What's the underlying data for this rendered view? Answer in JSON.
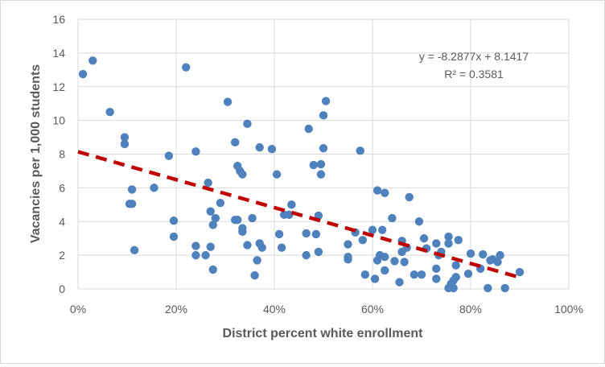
{
  "chart_data": {
    "type": "scatter",
    "xlabel": "District percent white enrollment",
    "ylabel": "Vacancies per 1,000 students",
    "xlim": [
      0,
      1
    ],
    "ylim": [
      0,
      16
    ],
    "x_ticks": [
      "0%",
      "20%",
      "40%",
      "60%",
      "80%",
      "100%"
    ],
    "x_tick_values": [
      0,
      0.2,
      0.4,
      0.6,
      0.8,
      1.0
    ],
    "y_ticks": [
      "0",
      "2",
      "4",
      "6",
      "8",
      "10",
      "12",
      "14",
      "16"
    ],
    "y_tick_values": [
      0,
      2,
      4,
      6,
      8,
      10,
      12,
      14,
      16
    ],
    "grid": true,
    "point_color": "#4f81bd",
    "trend_color": "#c00000",
    "trendline": {
      "slope": -8.2877,
      "intercept": 8.1417,
      "x_range": [
        0.0,
        0.9
      ],
      "equation": "y = -8.2877x + 8.1417",
      "r_squared": "R² = 0.3581"
    },
    "points": [
      [
        0.01,
        12.75
      ],
      [
        0.03,
        13.55
      ],
      [
        0.065,
        10.5
      ],
      [
        0.095,
        9.0
      ],
      [
        0.095,
        8.6
      ],
      [
        0.105,
        5.05
      ],
      [
        0.11,
        5.05
      ],
      [
        0.11,
        5.9
      ],
      [
        0.115,
        2.3
      ],
      [
        0.155,
        6.0
      ],
      [
        0.185,
        7.9
      ],
      [
        0.195,
        4.05
      ],
      [
        0.195,
        3.1
      ],
      [
        0.22,
        13.15
      ],
      [
        0.24,
        8.15
      ],
      [
        0.24,
        2.55
      ],
      [
        0.24,
        2.0
      ],
      [
        0.26,
        2.0
      ],
      [
        0.265,
        6.3
      ],
      [
        0.27,
        4.6
      ],
      [
        0.27,
        2.5
      ],
      [
        0.275,
        3.8
      ],
      [
        0.275,
        1.15
      ],
      [
        0.28,
        4.2
      ],
      [
        0.29,
        5.1
      ],
      [
        0.305,
        11.1
      ],
      [
        0.32,
        8.7
      ],
      [
        0.32,
        4.1
      ],
      [
        0.325,
        4.1
      ],
      [
        0.325,
        7.3
      ],
      [
        0.33,
        7.0
      ],
      [
        0.335,
        6.8
      ],
      [
        0.335,
        3.6
      ],
      [
        0.335,
        3.4
      ],
      [
        0.345,
        9.8
      ],
      [
        0.345,
        2.6
      ],
      [
        0.355,
        4.2
      ],
      [
        0.36,
        0.8
      ],
      [
        0.365,
        1.7
      ],
      [
        0.37,
        8.4
      ],
      [
        0.37,
        2.7
      ],
      [
        0.375,
        2.45
      ],
      [
        0.395,
        8.3
      ],
      [
        0.405,
        6.8
      ],
      [
        0.41,
        3.25
      ],
      [
        0.415,
        2.45
      ],
      [
        0.42,
        4.4
      ],
      [
        0.43,
        4.4
      ],
      [
        0.435,
        5.0
      ],
      [
        0.465,
        2.0
      ],
      [
        0.465,
        3.3
      ],
      [
        0.47,
        9.5
      ],
      [
        0.48,
        7.35
      ],
      [
        0.485,
        3.25
      ],
      [
        0.49,
        2.2
      ],
      [
        0.49,
        4.35
      ],
      [
        0.495,
        7.4
      ],
      [
        0.495,
        6.8
      ],
      [
        0.5,
        10.3
      ],
      [
        0.5,
        8.35
      ],
      [
        0.505,
        11.15
      ],
      [
        0.55,
        2.65
      ],
      [
        0.55,
        1.9
      ],
      [
        0.55,
        1.75
      ],
      [
        0.565,
        3.35
      ],
      [
        0.575,
        8.2
      ],
      [
        0.58,
        2.9
      ],
      [
        0.585,
        0.85
      ],
      [
        0.6,
        3.5
      ],
      [
        0.605,
        0.6
      ],
      [
        0.61,
        5.85
      ],
      [
        0.61,
        1.7
      ],
      [
        0.615,
        2.0
      ],
      [
        0.62,
        3.5
      ],
      [
        0.625,
        1.9
      ],
      [
        0.625,
        5.7
      ],
      [
        0.625,
        1.1
      ],
      [
        0.64,
        4.2
      ],
      [
        0.645,
        1.65
      ],
      [
        0.655,
        0.4
      ],
      [
        0.66,
        2.85
      ],
      [
        0.66,
        2.2
      ],
      [
        0.665,
        1.6
      ],
      [
        0.67,
        2.45
      ],
      [
        0.675,
        5.45
      ],
      [
        0.685,
        0.85
      ],
      [
        0.695,
        4.0
      ],
      [
        0.7,
        0.85
      ],
      [
        0.705,
        3.0
      ],
      [
        0.71,
        2.4
      ],
      [
        0.73,
        0.6
      ],
      [
        0.73,
        1.2
      ],
      [
        0.73,
        2.7
      ],
      [
        0.735,
        2.0
      ],
      [
        0.74,
        2.2
      ],
      [
        0.755,
        3.1
      ],
      [
        0.755,
        2.7
      ],
      [
        0.755,
        0.05
      ],
      [
        0.76,
        0.3
      ],
      [
        0.765,
        0.05
      ],
      [
        0.765,
        0.5
      ],
      [
        0.77,
        1.4
      ],
      [
        0.77,
        0.7
      ],
      [
        0.775,
        2.9
      ],
      [
        0.795,
        0.9
      ],
      [
        0.8,
        2.1
      ],
      [
        0.82,
        1.2
      ],
      [
        0.825,
        2.05
      ],
      [
        0.835,
        0.05
      ],
      [
        0.84,
        1.7
      ],
      [
        0.845,
        1.75
      ],
      [
        0.855,
        1.6
      ],
      [
        0.86,
        2.0
      ],
      [
        0.87,
        0.05
      ],
      [
        0.9,
        1.0
      ]
    ]
  }
}
